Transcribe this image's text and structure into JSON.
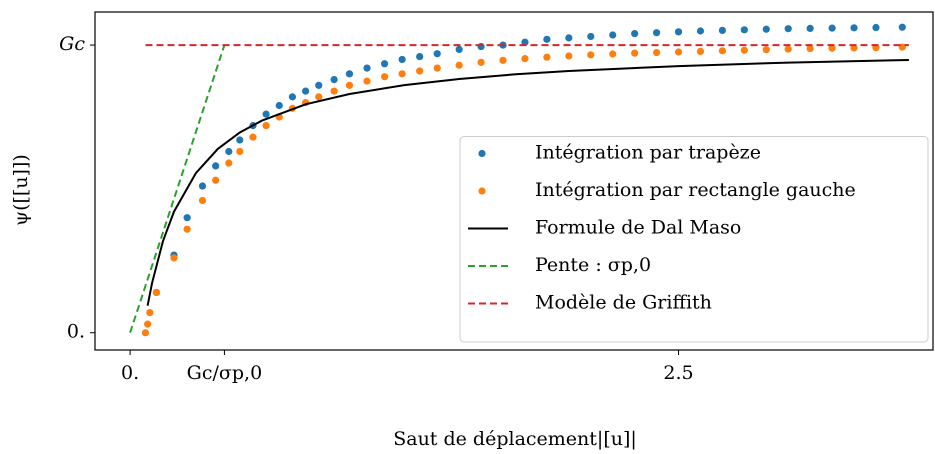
{
  "chart_data": {
    "type": "scatter",
    "xlabel": "Saut de déplacement|[u]|",
    "ylabel": "ψ([[u]])",
    "xlim": [
      -0.16,
      3.66
    ],
    "ylim": [
      -0.06,
      1.115
    ],
    "xticks": [
      {
        "value": 0,
        "label": "0."
      },
      {
        "value": 0.43,
        "label": "Gc/σp,0"
      },
      2.5
    ],
    "yticks": [
      {
        "value": 0,
        "label": "0."
      },
      {
        "value": 1,
        "label": "Gc"
      }
    ],
    "grid": false,
    "legend": "lower right",
    "series": [
      {
        "name": "Intégration par trapèze",
        "type": "scatter",
        "color": "#1f77b4",
        "x": [
          0.12,
          0.2,
          0.26,
          0.33,
          0.39,
          0.45,
          0.5,
          0.56,
          0.62,
          0.68,
          0.74,
          0.8,
          0.86,
          0.93,
          1.0,
          1.08,
          1.16,
          1.24,
          1.32,
          1.4,
          1.5,
          1.6,
          1.7,
          1.8,
          1.9,
          2.0,
          2.1,
          2.2,
          2.3,
          2.4,
          2.5,
          2.6,
          2.7,
          2.8,
          2.9,
          3.0,
          3.1,
          3.2,
          3.3,
          3.4,
          3.52
        ],
        "values": [
          0.14,
          0.27,
          0.4,
          0.51,
          0.58,
          0.63,
          0.67,
          0.72,
          0.76,
          0.79,
          0.82,
          0.84,
          0.86,
          0.88,
          0.9,
          0.92,
          0.935,
          0.95,
          0.96,
          0.97,
          0.985,
          0.995,
          1.0,
          1.01,
          1.02,
          1.025,
          1.03,
          1.035,
          1.04,
          1.043,
          1.046,
          1.049,
          1.051,
          1.053,
          1.055,
          1.057,
          1.058,
          1.059,
          1.06,
          1.061,
          1.062
        ]
      },
      {
        "name": "Intégration par rectangle gauche",
        "type": "scatter",
        "color": "#ff7f0e",
        "x": [
          0.07,
          0.08,
          0.09,
          0.12,
          0.2,
          0.26,
          0.33,
          0.39,
          0.45,
          0.5,
          0.56,
          0.62,
          0.68,
          0.74,
          0.8,
          0.86,
          0.93,
          1.0,
          1.08,
          1.16,
          1.24,
          1.32,
          1.4,
          1.5,
          1.6,
          1.7,
          1.8,
          1.9,
          2.0,
          2.1,
          2.2,
          2.3,
          2.4,
          2.5,
          2.6,
          2.7,
          2.8,
          2.9,
          3.0,
          3.1,
          3.2,
          3.3,
          3.4,
          3.52
        ],
        "values": [
          0,
          0.03,
          0.07,
          0.14,
          0.26,
          0.36,
          0.46,
          0.53,
          0.59,
          0.63,
          0.68,
          0.72,
          0.75,
          0.78,
          0.8,
          0.82,
          0.84,
          0.86,
          0.875,
          0.89,
          0.9,
          0.91,
          0.92,
          0.93,
          0.94,
          0.947,
          0.953,
          0.958,
          0.962,
          0.966,
          0.969,
          0.972,
          0.974,
          0.976,
          0.978,
          0.98,
          0.982,
          0.984,
          0.986,
          0.988,
          0.989,
          0.99,
          0.991,
          0.993
        ]
      },
      {
        "name": "Formule de Dal Maso",
        "type": "line",
        "color": "#000000",
        "dashed": false,
        "x": [
          0.08,
          0.1,
          0.15,
          0.2,
          0.3,
          0.4,
          0.5,
          0.6,
          0.8,
          1.0,
          1.25,
          1.5,
          1.75,
          2.0,
          2.5,
          3.0,
          3.55
        ],
        "values": [
          0.094,
          0.172,
          0.319,
          0.421,
          0.555,
          0.639,
          0.696,
          0.737,
          0.794,
          0.83,
          0.861,
          0.882,
          0.898,
          0.91,
          0.927,
          0.939,
          0.948
        ]
      },
      {
        "name": "Pente : σp,0",
        "type": "line",
        "color": "#2ca02c",
        "dashed": true,
        "x": [
          0,
          0.43
        ],
        "values": [
          0,
          1
        ]
      },
      {
        "name": "Modèle de Griffith",
        "type": "line",
        "color": "#d62728",
        "dashed": true,
        "x": [
          0.07,
          3.55
        ],
        "values": [
          1,
          1
        ]
      }
    ]
  }
}
